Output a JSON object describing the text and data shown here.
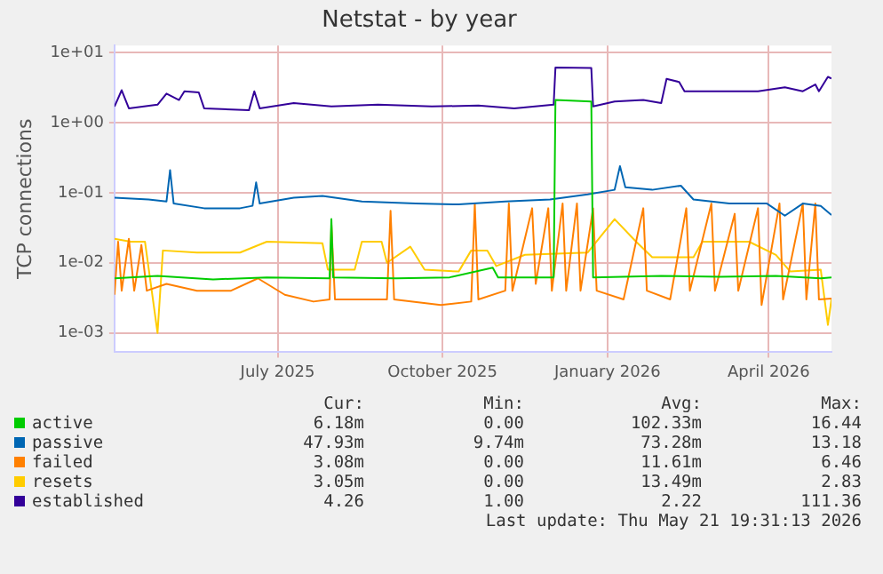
{
  "chart_data": {
    "type": "line",
    "title": "Netstat - by year",
    "ylabel": "TCP connections",
    "log": "y",
    "grid": true,
    "legend": "bottom",
    "xlim": [
      "2025-04-16",
      "2026-05-21"
    ],
    "xticks": [
      {
        "value": "2025-07-16",
        "label": "July 2025"
      },
      {
        "value": "2025-10-16",
        "label": "October 2025"
      },
      {
        "value": "2026-01-16",
        "label": "January 2026"
      },
      {
        "value": "2026-04-16",
        "label": "April 2026"
      }
    ],
    "ylim": [
      0.00053,
      12.6
    ],
    "yticks": [
      {
        "value": 0.001,
        "label": "1e-03"
      },
      {
        "value": 0.01,
        "label": "1e-02"
      },
      {
        "value": 0.1,
        "label": "1e-01"
      },
      {
        "value": 1,
        "label": "1e+00"
      },
      {
        "value": 10,
        "label": "1e+01"
      }
    ],
    "series": [
      {
        "name": "active",
        "color": "#00cc00",
        "x": [
          "2025-04-16",
          "2025-05-10",
          "2025-06-10",
          "2025-07-10",
          "2025-08-14",
          "2025-08-15",
          "2025-08-16",
          "2025-09-20",
          "2025-10-20",
          "2025-11-13",
          "2025-11-16",
          "2025-12-17",
          "2025-12-18",
          "2026-01-07",
          "2026-01-08",
          "2026-02-15",
          "2026-03-20",
          "2026-04-20",
          "2026-05-15",
          "2026-05-21"
        ],
        "values": [
          0.006,
          0.0065,
          0.0058,
          0.0062,
          0.006,
          0.042,
          0.0062,
          0.006,
          0.0062,
          0.0085,
          0.0062,
          0.0062,
          2.1,
          2.0,
          0.0062,
          0.0065,
          0.0063,
          0.0065,
          0.006,
          0.0062
        ]
      },
      {
        "name": "passive",
        "color": "#0066b3",
        "x": [
          "2025-04-16",
          "2025-05-05",
          "2025-05-15",
          "2025-05-17",
          "2025-05-19",
          "2025-06-05",
          "2025-06-25",
          "2025-07-02",
          "2025-07-04",
          "2025-07-06",
          "2025-07-25",
          "2025-08-10",
          "2025-09-01",
          "2025-10-01",
          "2025-10-25",
          "2025-11-20",
          "2025-12-15",
          "2026-01-05",
          "2026-01-20",
          "2026-01-23",
          "2026-01-26",
          "2026-02-10",
          "2026-02-26",
          "2026-03-05",
          "2026-03-25",
          "2026-04-15",
          "2026-04-25",
          "2026-05-05",
          "2026-05-15",
          "2026-05-21"
        ],
        "values": [
          0.085,
          0.08,
          0.075,
          0.21,
          0.07,
          0.06,
          0.06,
          0.065,
          0.14,
          0.07,
          0.085,
          0.09,
          0.075,
          0.07,
          0.068,
          0.075,
          0.08,
          0.095,
          0.11,
          0.24,
          0.12,
          0.11,
          0.126,
          0.08,
          0.07,
          0.07,
          0.047,
          0.07,
          0.065,
          0.048
        ]
      },
      {
        "name": "failed",
        "color": "#ff8000",
        "x": [
          "2025-04-16",
          "2025-04-18",
          "2025-04-20",
          "2025-04-24",
          "2025-04-27",
          "2025-05-01",
          "2025-05-04",
          "2025-05-15",
          "2025-06-01",
          "2025-06-20",
          "2025-07-05",
          "2025-07-20",
          "2025-08-05",
          "2025-08-14",
          "2025-08-15",
          "2025-08-17",
          "2025-09-15",
          "2025-09-17",
          "2025-09-19",
          "2025-10-15",
          "2025-11-01",
          "2025-11-03",
          "2025-11-05",
          "2025-11-20",
          "2025-11-22",
          "2025-11-24",
          "2025-12-05",
          "2025-12-07",
          "2025-12-14",
          "2025-12-16",
          "2025-12-22",
          "2025-12-24",
          "2025-12-30",
          "2026-01-01",
          "2026-01-08",
          "2026-01-10",
          "2026-01-25",
          "2026-02-05",
          "2026-02-07",
          "2026-02-20",
          "2026-03-01",
          "2026-03-03",
          "2026-03-15",
          "2026-03-17",
          "2026-03-28",
          "2026-03-30",
          "2026-04-10",
          "2026-04-12",
          "2026-04-22",
          "2026-04-24",
          "2026-05-05",
          "2026-05-07",
          "2026-05-12",
          "2026-05-14",
          "2026-05-21"
        ],
        "values": [
          0.0035,
          0.02,
          0.004,
          0.022,
          0.004,
          0.018,
          0.004,
          0.005,
          0.004,
          0.004,
          0.006,
          0.0035,
          0.0028,
          0.003,
          0.035,
          0.003,
          0.003,
          0.055,
          0.003,
          0.0025,
          0.0028,
          0.07,
          0.003,
          0.004,
          0.07,
          0.004,
          0.06,
          0.005,
          0.06,
          0.004,
          0.07,
          0.004,
          0.07,
          0.004,
          0.06,
          0.004,
          0.003,
          0.06,
          0.004,
          0.003,
          0.06,
          0.004,
          0.07,
          0.004,
          0.05,
          0.004,
          0.06,
          0.0025,
          0.07,
          0.003,
          0.07,
          0.003,
          0.07,
          0.003,
          0.00308
        ]
      },
      {
        "name": "resets",
        "color": "#ffcc00",
        "x": [
          "2025-04-16",
          "2025-04-25",
          "2025-05-03",
          "2025-05-10",
          "2025-05-13",
          "2025-06-01",
          "2025-06-25",
          "2025-07-10",
          "2025-08-10",
          "2025-08-13",
          "2025-08-28",
          "2025-09-01",
          "2025-09-12",
          "2025-09-15",
          "2025-09-28",
          "2025-10-06",
          "2025-10-25",
          "2025-11-01",
          "2025-11-10",
          "2025-11-15",
          "2025-12-01",
          "2026-01-05",
          "2026-01-20",
          "2026-02-01",
          "2026-02-10",
          "2026-03-05",
          "2026-03-10",
          "2026-04-05",
          "2026-04-20",
          "2026-04-28",
          "2026-05-15",
          "2026-05-19",
          "2026-05-21"
        ],
        "values": [
          0.022,
          0.02,
          0.02,
          0.001,
          0.015,
          0.014,
          0.014,
          0.02,
          0.019,
          0.008,
          0.008,
          0.02,
          0.02,
          0.01,
          0.017,
          0.008,
          0.0075,
          0.015,
          0.015,
          0.009,
          0.013,
          0.014,
          0.042,
          0.02,
          0.012,
          0.012,
          0.02,
          0.02,
          0.013,
          0.0075,
          0.008,
          0.0013,
          0.003
        ]
      },
      {
        "name": "established",
        "color": "#330099",
        "x": [
          "2025-04-16",
          "2025-04-20",
          "2025-04-24",
          "2025-05-10",
          "2025-05-15",
          "2025-05-22",
          "2025-05-25",
          "2025-06-02",
          "2025-06-05",
          "2025-06-30",
          "2025-07-03",
          "2025-07-06",
          "2025-07-25",
          "2025-08-15",
          "2025-09-10",
          "2025-10-10",
          "2025-11-05",
          "2025-11-25",
          "2025-12-17",
          "2025-12-18",
          "2026-01-07",
          "2026-01-08",
          "2026-01-20",
          "2026-02-05",
          "2026-02-15",
          "2026-02-18",
          "2026-02-25",
          "2026-02-28",
          "2026-03-20",
          "2026-04-10",
          "2026-04-25",
          "2026-05-05",
          "2026-05-12",
          "2026-05-14",
          "2026-05-19",
          "2026-05-21"
        ],
        "values": [
          1.7,
          2.9,
          1.6,
          1.8,
          2.6,
          2.1,
          2.8,
          2.7,
          1.6,
          1.5,
          2.8,
          1.6,
          1.9,
          1.7,
          1.8,
          1.7,
          1.75,
          1.6,
          1.8,
          6.1,
          6.0,
          1.7,
          2.0,
          2.1,
          1.9,
          4.2,
          3.8,
          2.8,
          2.8,
          2.8,
          3.2,
          2.8,
          3.5,
          2.8,
          4.5,
          4.26
        ]
      }
    ],
    "annotations": [
      "Cur:",
      "Min:",
      "Avg:",
      "Max:",
      "6.18m",
      "0.00",
      "102.33m",
      "16.44",
      "47.93m",
      "9.74m",
      "73.28m",
      "13.18",
      "3.08m",
      "0.00",
      "11.61m",
      "6.46",
      "3.05m",
      "0.00",
      "13.49m",
      "2.83",
      "4.26",
      "1.00",
      "2.22",
      "111.36",
      "Last update: Thu May 21 19:31:13 2026"
    ]
  }
}
